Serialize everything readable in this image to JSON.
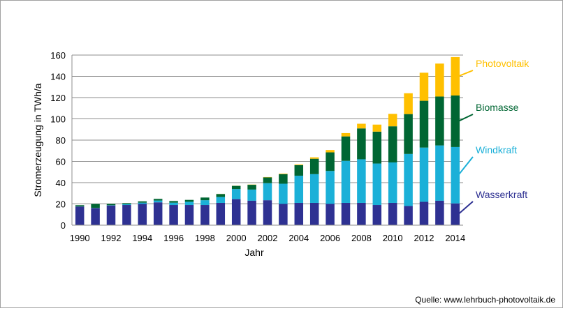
{
  "chart_data": {
    "type": "bar",
    "stacked": true,
    "categories": [
      "1990",
      "1991",
      "1992",
      "1993",
      "1994",
      "1995",
      "1996",
      "1997",
      "1998",
      "1999",
      "2000",
      "2001",
      "2002",
      "2003",
      "2004",
      "2005",
      "2006",
      "2007",
      "2008",
      "2009",
      "2010",
      "2011",
      "2012",
      "2013",
      "2014"
    ],
    "x_tick_labels": [
      "1990",
      "1992",
      "1994",
      "1996",
      "1998",
      "2000",
      "2002",
      "2004",
      "2006",
      "2008",
      "2010",
      "2012",
      "2014"
    ],
    "xlabel": "Jahr",
    "ylabel": "Stromerzeugung  in TWh/a",
    "ylim": [
      0,
      160
    ],
    "y_ticks": [
      0,
      20,
      40,
      60,
      80,
      100,
      120,
      140,
      160
    ],
    "grid": true,
    "legend_placement": "right, inline labels",
    "series": [
      {
        "name": "Wasserkraft",
        "color": "#2e3192",
        "values": [
          17.5,
          16,
          18.5,
          19,
          20,
          21.5,
          19,
          19,
          19,
          21,
          24.5,
          23,
          23.5,
          20,
          21,
          21,
          20,
          21,
          21,
          19,
          21,
          18,
          22,
          23,
          20.5
        ]
      },
      {
        "name": "Windkraft",
        "color": "#1bb0d8",
        "values": [
          0.1,
          0.2,
          0.3,
          0.7,
          1.2,
          1.7,
          2.2,
          3,
          4.5,
          5.5,
          9.5,
          10.5,
          16,
          19,
          25.5,
          27,
          31,
          39.5,
          41,
          39,
          38,
          49,
          51,
          52,
          53
        ]
      },
      {
        "name": "Biomasse",
        "color": "#006633",
        "values": [
          1.2,
          3.8,
          1.2,
          1.0,
          1.2,
          1.5,
          1.5,
          1.8,
          2.5,
          2.8,
          3.0,
          4.5,
          5.5,
          9.0,
          10.0,
          14.5,
          17.5,
          23.0,
          29.0,
          30.0,
          34.0,
          37.5,
          44.0,
          46.0,
          48.5
        ]
      },
      {
        "name": "Photovoltaik",
        "color": "#ffc000",
        "values": [
          0,
          0,
          0,
          0,
          0,
          0,
          0,
          0,
          0,
          0.1,
          0.1,
          0.2,
          0.3,
          0.5,
          0.6,
          1.3,
          2.2,
          3.1,
          4.4,
          6.6,
          11.7,
          19.6,
          26.4,
          31.0,
          36.1
        ]
      }
    ]
  },
  "source": "Quelle: www.lehrbuch-photovoltaik.de"
}
